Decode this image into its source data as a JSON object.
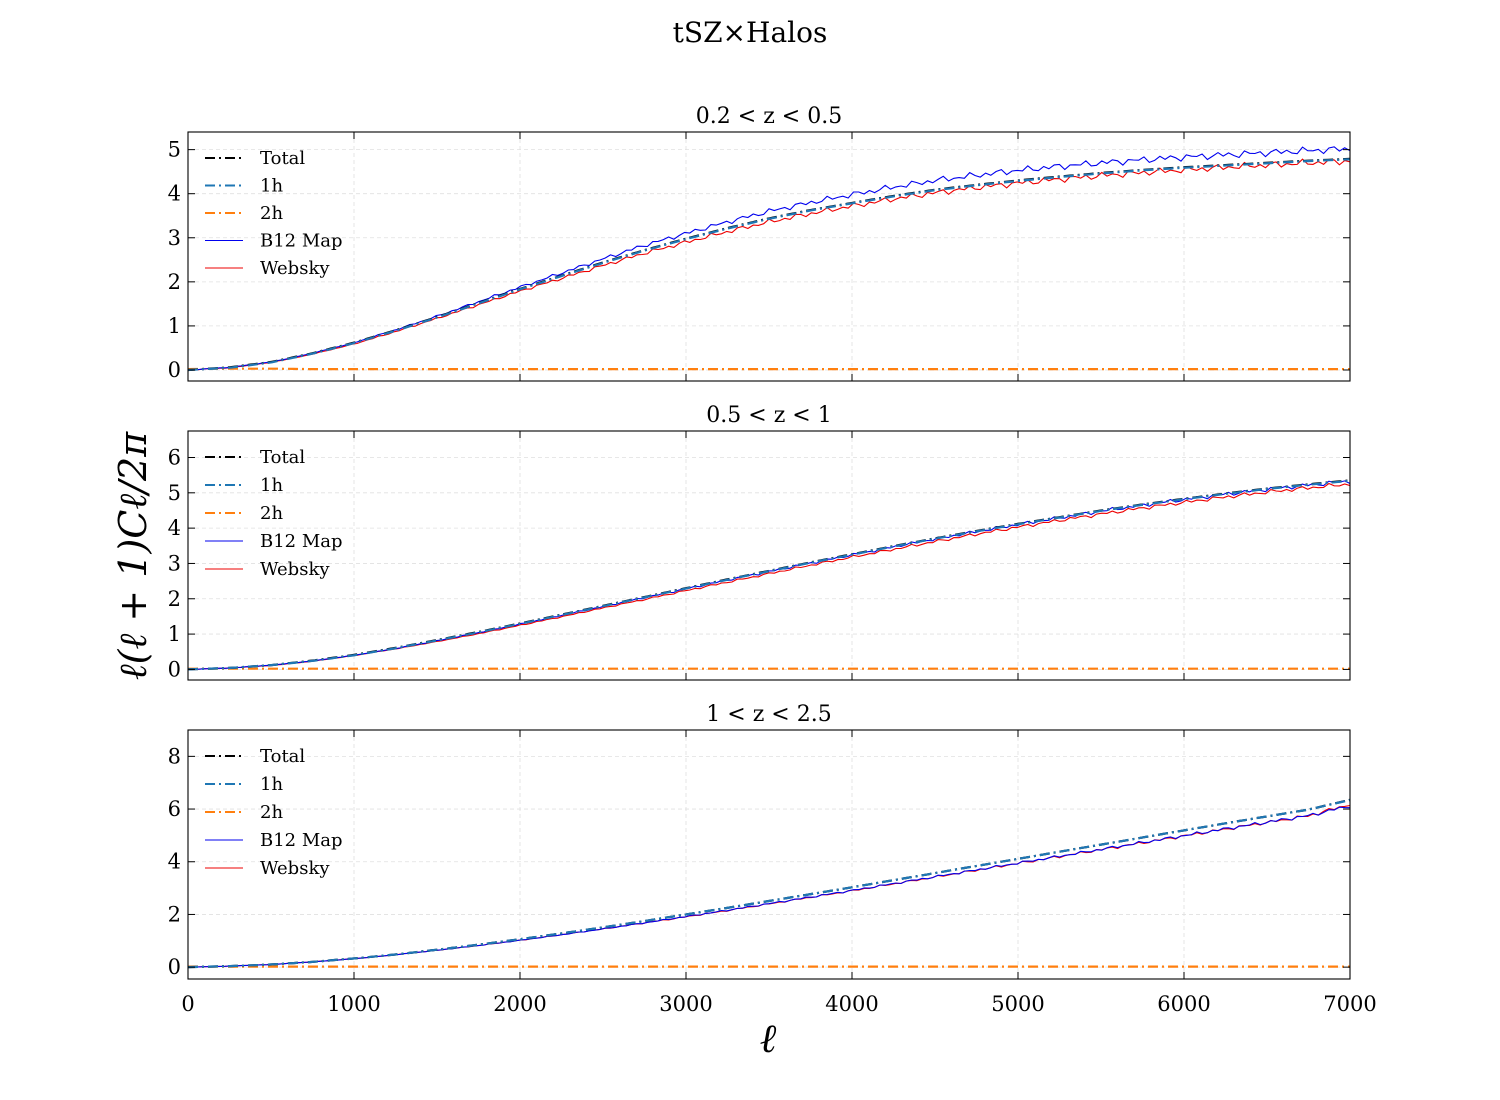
{
  "figure": {
    "suptitle": "tSZ×Halos",
    "xlabel": "ℓ",
    "ylabel": "ℓ(ℓ + 1)Cℓ/2π"
  },
  "colors": {
    "Total": "#000000",
    "1h": "#1f77b4",
    "2h": "#ff7f0e",
    "B12 Map": "#0000ee",
    "Websky": "#ee0000",
    "grid": "#e0e0e0"
  },
  "chart_data": [
    {
      "type": "line",
      "title": "0.2 < z < 0.5",
      "xlim": [
        0,
        7000
      ],
      "ylim": [
        -0.25,
        5.4
      ],
      "xticks": [
        0,
        1000,
        2000,
        3000,
        4000,
        5000,
        6000,
        7000
      ],
      "yticks": [
        0,
        1,
        2,
        3,
        4,
        5
      ],
      "grid": true,
      "legend": "upper-left",
      "x": [
        0,
        250,
        500,
        750,
        1000,
        1250,
        1500,
        1750,
        2000,
        2250,
        2500,
        2750,
        3000,
        3250,
        3500,
        3750,
        4000,
        4250,
        4500,
        4750,
        5000,
        5250,
        5500,
        5750,
        6000,
        6250,
        6500,
        6750,
        7000
      ],
      "series": [
        {
          "name": "Total",
          "style": "dashdot",
          "values": [
            0,
            0.06,
            0.18,
            0.38,
            0.62,
            0.9,
            1.2,
            1.52,
            1.84,
            2.14,
            2.44,
            2.72,
            2.98,
            3.22,
            3.44,
            3.63,
            3.79,
            3.95,
            4.09,
            4.2,
            4.3,
            4.39,
            4.47,
            4.54,
            4.6,
            4.65,
            4.7,
            4.75,
            4.79
          ]
        },
        {
          "name": "1h",
          "style": "dashdot",
          "values": [
            0,
            0.05,
            0.17,
            0.37,
            0.61,
            0.89,
            1.19,
            1.51,
            1.83,
            2.13,
            2.43,
            2.71,
            2.97,
            3.21,
            3.43,
            3.62,
            3.78,
            3.94,
            4.08,
            4.19,
            4.29,
            4.38,
            4.46,
            4.53,
            4.59,
            4.64,
            4.69,
            4.74,
            4.78
          ]
        },
        {
          "name": "2h",
          "style": "dashdot",
          "values": [
            0.02,
            0.03,
            0.03,
            0.02,
            0.02,
            0.02,
            0.02,
            0.02,
            0.02,
            0.02,
            0.02,
            0.02,
            0.02,
            0.02,
            0.02,
            0.02,
            0.02,
            0.02,
            0.02,
            0.02,
            0.02,
            0.02,
            0.02,
            0.02,
            0.02,
            0.02,
            0.02,
            0.02,
            0.02
          ]
        },
        {
          "name": "B12 Map",
          "style": "solid",
          "values": [
            0,
            0.06,
            0.18,
            0.38,
            0.62,
            0.91,
            1.22,
            1.55,
            1.88,
            2.2,
            2.52,
            2.83,
            3.1,
            3.36,
            3.6,
            3.8,
            3.98,
            4.15,
            4.3,
            4.42,
            4.53,
            4.62,
            4.7,
            4.77,
            4.83,
            4.88,
            4.93,
            4.98,
            5.02
          ]
        },
        {
          "name": "Websky",
          "style": "solid",
          "values": [
            0,
            0.05,
            0.17,
            0.36,
            0.59,
            0.87,
            1.17,
            1.48,
            1.79,
            2.08,
            2.37,
            2.65,
            2.9,
            3.14,
            3.36,
            3.55,
            3.72,
            3.88,
            4.02,
            4.14,
            4.24,
            4.33,
            4.41,
            4.48,
            4.54,
            4.6,
            4.65,
            4.7,
            4.74
          ]
        }
      ]
    },
    {
      "type": "line",
      "title": "0.5 < z < 1",
      "xlim": [
        0,
        7000
      ],
      "ylim": [
        -0.3,
        6.75
      ],
      "xticks": [
        0,
        1000,
        2000,
        3000,
        4000,
        5000,
        6000,
        7000
      ],
      "yticks": [
        0,
        1,
        2,
        3,
        4,
        5,
        6
      ],
      "grid": true,
      "legend": "upper-left",
      "x": [
        0,
        250,
        500,
        750,
        1000,
        1250,
        1500,
        1750,
        2000,
        2250,
        2500,
        2750,
        3000,
        3250,
        3500,
        3750,
        4000,
        4250,
        4500,
        4750,
        5000,
        5250,
        5500,
        5750,
        6000,
        6250,
        6500,
        6750,
        7000
      ],
      "series": [
        {
          "name": "Total",
          "style": "dashdot",
          "values": [
            0,
            0.04,
            0.12,
            0.25,
            0.41,
            0.61,
            0.83,
            1.06,
            1.3,
            1.55,
            1.8,
            2.05,
            2.3,
            2.55,
            2.79,
            3.03,
            3.26,
            3.49,
            3.71,
            3.92,
            4.12,
            4.31,
            4.5,
            4.67,
            4.83,
            4.98,
            5.12,
            5.24,
            5.35
          ]
        },
        {
          "name": "1h",
          "style": "dashdot",
          "values": [
            0,
            0.04,
            0.12,
            0.24,
            0.4,
            0.6,
            0.82,
            1.05,
            1.29,
            1.54,
            1.79,
            2.04,
            2.29,
            2.54,
            2.78,
            3.02,
            3.25,
            3.48,
            3.7,
            3.91,
            4.11,
            4.3,
            4.49,
            4.66,
            4.82,
            4.97,
            5.11,
            5.23,
            5.34
          ]
        },
        {
          "name": "2h",
          "style": "dashdot",
          "values": [
            0.02,
            0.02,
            0.02,
            0.02,
            0.02,
            0.02,
            0.02,
            0.02,
            0.02,
            0.02,
            0.02,
            0.02,
            0.02,
            0.02,
            0.02,
            0.02,
            0.02,
            0.02,
            0.02,
            0.02,
            0.02,
            0.02,
            0.02,
            0.02,
            0.02,
            0.02,
            0.02,
            0.02,
            0.02
          ]
        },
        {
          "name": "B12 Map",
          "style": "solid",
          "values": [
            0,
            0.04,
            0.12,
            0.24,
            0.4,
            0.59,
            0.81,
            1.04,
            1.28,
            1.53,
            1.78,
            2.03,
            2.28,
            2.53,
            2.77,
            3.01,
            3.24,
            3.47,
            3.69,
            3.9,
            4.1,
            4.29,
            4.48,
            4.65,
            4.81,
            4.96,
            5.1,
            5.22,
            5.33
          ]
        },
        {
          "name": "Websky",
          "style": "solid",
          "values": [
            0,
            0.04,
            0.11,
            0.23,
            0.39,
            0.58,
            0.79,
            1.01,
            1.25,
            1.49,
            1.74,
            1.98,
            2.23,
            2.47,
            2.71,
            2.95,
            3.18,
            3.4,
            3.62,
            3.83,
            4.03,
            4.22,
            4.4,
            4.57,
            4.73,
            4.88,
            5.02,
            5.14,
            5.25
          ]
        }
      ]
    },
    {
      "type": "line",
      "title": "1 < z < 2.5",
      "xlim": [
        0,
        7000
      ],
      "ylim": [
        -0.45,
        9.0
      ],
      "xticks": [
        0,
        1000,
        2000,
        3000,
        4000,
        5000,
        6000,
        7000
      ],
      "yticks": [
        0,
        2,
        4,
        6,
        8
      ],
      "grid": true,
      "legend": "upper-left",
      "x": [
        0,
        250,
        500,
        750,
        1000,
        1250,
        1500,
        1750,
        2000,
        2250,
        2500,
        2750,
        3000,
        3250,
        3500,
        3750,
        4000,
        4250,
        4500,
        4750,
        5000,
        5250,
        5500,
        5750,
        6000,
        6250,
        6500,
        6750,
        7000
      ],
      "series": [
        {
          "name": "Total",
          "style": "dashdot",
          "values": [
            0,
            0.04,
            0.1,
            0.2,
            0.33,
            0.48,
            0.66,
            0.85,
            1.06,
            1.28,
            1.51,
            1.75,
            2.0,
            2.25,
            2.51,
            2.77,
            3.03,
            3.3,
            3.57,
            3.84,
            4.11,
            4.38,
            4.65,
            4.92,
            5.19,
            5.46,
            5.72,
            5.98,
            6.35
          ]
        },
        {
          "name": "1h",
          "style": "dashdot",
          "values": [
            0,
            0.04,
            0.1,
            0.2,
            0.33,
            0.48,
            0.66,
            0.85,
            1.06,
            1.28,
            1.51,
            1.75,
            2.0,
            2.25,
            2.51,
            2.77,
            3.03,
            3.3,
            3.57,
            3.84,
            4.11,
            4.38,
            4.65,
            4.92,
            5.19,
            5.46,
            5.72,
            5.98,
            6.34
          ]
        },
        {
          "name": "2h",
          "style": "dashdot",
          "values": [
            0.02,
            0.02,
            0.02,
            0.02,
            0.02,
            0.02,
            0.02,
            0.02,
            0.02,
            0.02,
            0.02,
            0.02,
            0.02,
            0.02,
            0.02,
            0.02,
            0.02,
            0.02,
            0.02,
            0.02,
            0.02,
            0.02,
            0.02,
            0.02,
            0.02,
            0.02,
            0.02,
            0.02,
            0.02
          ]
        },
        {
          "name": "B12 Map",
          "style": "solid",
          "values": [
            0,
            0.04,
            0.1,
            0.2,
            0.32,
            0.47,
            0.64,
            0.82,
            1.02,
            1.23,
            1.45,
            1.68,
            1.92,
            2.16,
            2.41,
            2.66,
            2.91,
            3.17,
            3.43,
            3.69,
            3.95,
            4.21,
            4.47,
            4.73,
            4.99,
            5.25,
            5.5,
            5.75,
            6.12
          ]
        },
        {
          "name": "Websky",
          "style": "solid",
          "values": [
            0,
            0.04,
            0.1,
            0.2,
            0.32,
            0.47,
            0.64,
            0.82,
            1.02,
            1.23,
            1.45,
            1.68,
            1.91,
            2.15,
            2.4,
            2.65,
            2.9,
            3.16,
            3.42,
            3.68,
            3.94,
            4.2,
            4.46,
            4.72,
            4.98,
            5.24,
            5.49,
            5.74,
            6.18
          ]
        }
      ]
    }
  ]
}
